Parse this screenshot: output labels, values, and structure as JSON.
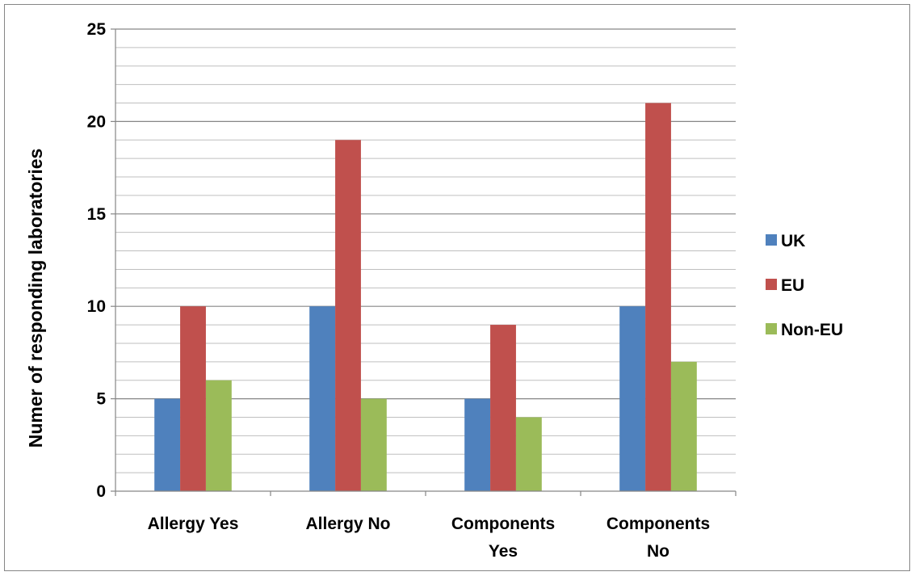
{
  "chart_data": {
    "type": "bar",
    "title": "",
    "xlabel": "",
    "ylabel": "Numer of responding laboratories",
    "ylim": [
      0,
      25
    ],
    "y_major_ticks": [
      0,
      5,
      10,
      15,
      20,
      25
    ],
    "y_minor_step": 1,
    "grid": true,
    "legend_position": "right",
    "categories": [
      [
        "Allergy Yes"
      ],
      [
        "Allergy No"
      ],
      [
        "Components",
        "Yes"
      ],
      [
        "Components",
        "No"
      ]
    ],
    "series": [
      {
        "name": "UK",
        "color": "#4f81bd",
        "values": [
          5,
          10,
          5,
          10
        ]
      },
      {
        "name": "EU",
        "color": "#c0504d",
        "values": [
          10,
          19,
          9,
          21
        ]
      },
      {
        "name": "Non-EU",
        "color": "#9bbb59",
        "values": [
          6,
          5,
          4,
          7
        ]
      }
    ]
  }
}
